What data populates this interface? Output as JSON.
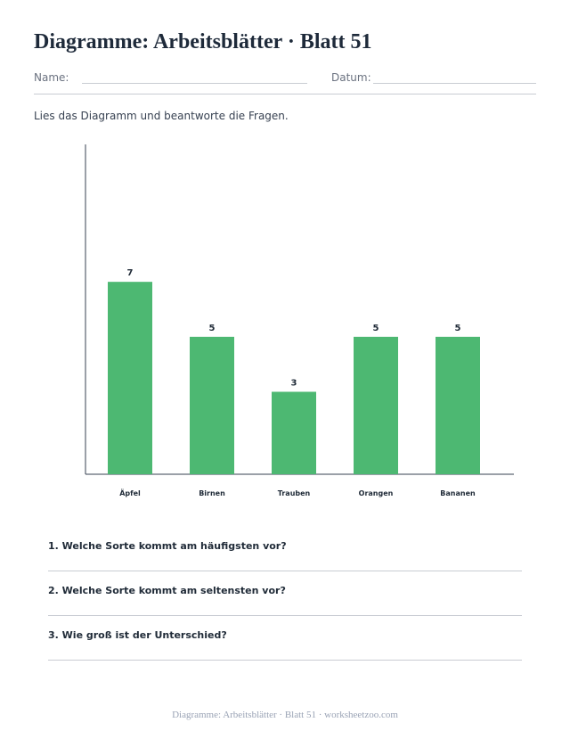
{
  "title": "Diagramme: Arbeitsblätter · Blatt 51",
  "fields": {
    "name_label": "Name:",
    "date_label": "Datum:"
  },
  "instruction": "Lies das Diagramm und beantworte die Fragen.",
  "colors": {
    "bar": "#4db872",
    "axis": "#374151",
    "rule": "#c9ccd3"
  },
  "chart_data": {
    "type": "bar",
    "categories": [
      "Äpfel",
      "Birnen",
      "Trauben",
      "Orangen",
      "Bananen"
    ],
    "values": [
      7,
      5,
      3,
      5,
      5
    ],
    "title": "",
    "xlabel": "",
    "ylabel": "",
    "ylim": [
      0,
      12
    ],
    "grid": false,
    "data_labels": true
  },
  "questions": [
    "1. Welche Sorte kommt am häufigsten vor?",
    "2. Welche Sorte kommt am seltensten vor?",
    "3. Wie groß ist der Unterschied?"
  ],
  "footer": "Diagramme: Arbeitsblätter · Blatt 51 · worksheetzoo.com"
}
